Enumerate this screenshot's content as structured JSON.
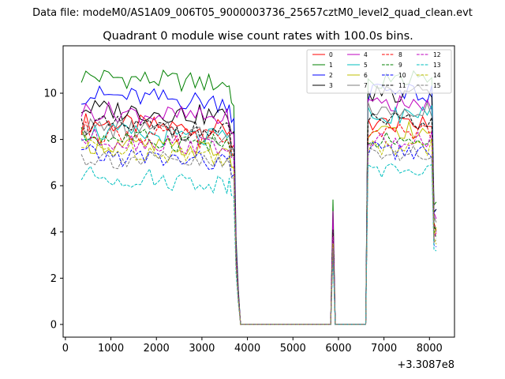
{
  "chart_data": {
    "type": "line",
    "suptitle": "Data file: modeM0/AS1A09_006T05_9000003736_25657cztM0_level2_quad_clean.evt",
    "title": "Quadrant 0 module wise count rates with 100.0s bins.",
    "xlabel": "",
    "ylabel": "",
    "x_offset_label": "+3.3087e8",
    "xlim": [
      -50,
      8550
    ],
    "ylim": [
      -0.55,
      12.05
    ],
    "x_ticks": [
      0,
      1000,
      2000,
      3000,
      4000,
      5000,
      6000,
      7000,
      8000
    ],
    "x_tick_labels": [
      "0",
      "1000",
      "2000",
      "3000",
      "4000",
      "5000",
      "6000",
      "7000",
      "8000"
    ],
    "y_ticks": [
      0,
      2,
      4,
      6,
      8,
      10
    ],
    "y_tick_labels": [
      "0",
      "2",
      "4",
      "6",
      "8",
      "10"
    ],
    "legend_location": "upper right",
    "x_segments": [
      {
        "start": 350,
        "end": 3550,
        "step": 100
      },
      {
        "start": 3600,
        "end": 3900,
        "step": 50
      },
      {
        "start": 4000,
        "end": 5700,
        "step": 100
      },
      {
        "start": 5780,
        "end": 5780,
        "step": 1
      },
      {
        "start": 5830,
        "end": 5930,
        "step": 50
      },
      {
        "start": 5980,
        "end": 5980,
        "step": 1
      },
      {
        "start": 6050,
        "end": 6550,
        "step": 100
      },
      {
        "start": 6600,
        "end": 6600,
        "step": 1
      },
      {
        "start": 6650,
        "end": 8050,
        "step": 100
      },
      {
        "start": 8100,
        "end": 8150,
        "step": 50
      }
    ],
    "profile_note": "Each series: high plateau until ~3700 s, drop to zero ~3800-5780, spike near 5880, zero until ~6600, high plateau until ~8150.",
    "series": [
      {
        "name": "0",
        "color": "#ff0000",
        "dash": "solid",
        "level1": 8.4,
        "level2": 8.7,
        "spike": 4.2
      },
      {
        "name": "1",
        "color": "#008000",
        "dash": "solid",
        "level1": 10.4,
        "level2": 10.6,
        "spike": 5.4
      },
      {
        "name": "2",
        "color": "#0000ff",
        "dash": "solid",
        "level1": 9.6,
        "level2": 10.0,
        "spike": 4.5
      },
      {
        "name": "3",
        "color": "#000000",
        "dash": "solid",
        "level1": 9.0,
        "level2": 10.0,
        "spike": 4.6
      },
      {
        "name": "4",
        "color": "#bf00bf",
        "dash": "solid",
        "level1": 8.9,
        "level2": 9.6,
        "spike": 4.9
      },
      {
        "name": "5",
        "color": "#00bfbf",
        "dash": "solid",
        "level1": 8.0,
        "level2": 9.1,
        "spike": 3.6
      },
      {
        "name": "6",
        "color": "#bfbf00",
        "dash": "solid",
        "level1": 7.5,
        "level2": 8.4,
        "spike": 3.4
      },
      {
        "name": "7",
        "color": "#7f7f7f",
        "dash": "solid",
        "level1": 8.2,
        "level2": 9.3,
        "spike": 4.0
      },
      {
        "name": "8",
        "color": "#ff0000",
        "dash": "dashed",
        "level1": 8.0,
        "level2": 8.3,
        "spike": 3.9
      },
      {
        "name": "9",
        "color": "#008000",
        "dash": "dashed",
        "level1": 7.8,
        "level2": 8.0,
        "spike": 3.7
      },
      {
        "name": "10",
        "color": "#0000ff",
        "dash": "dashed",
        "level1": 7.0,
        "level2": 7.5,
        "spike": 3.3
      },
      {
        "name": "11",
        "color": "#000000",
        "dash": "dashed",
        "level1": 8.3,
        "level2": 8.8,
        "spike": 4.1
      },
      {
        "name": "12",
        "color": "#bf00bf",
        "dash": "dashed",
        "level1": 7.7,
        "level2": 8.0,
        "spike": 3.8
      },
      {
        "name": "13",
        "color": "#00bfbf",
        "dash": "dashed",
        "level1": 6.1,
        "level2": 6.6,
        "spike": 2.9
      },
      {
        "name": "14",
        "color": "#bfbf00",
        "dash": "dashed",
        "level1": 7.3,
        "level2": 7.7,
        "spike": 3.5
      },
      {
        "name": "15",
        "color": "#7f7f7f",
        "dash": "dashed",
        "level1": 6.9,
        "level2": 7.4,
        "spike": 3.3
      }
    ]
  }
}
